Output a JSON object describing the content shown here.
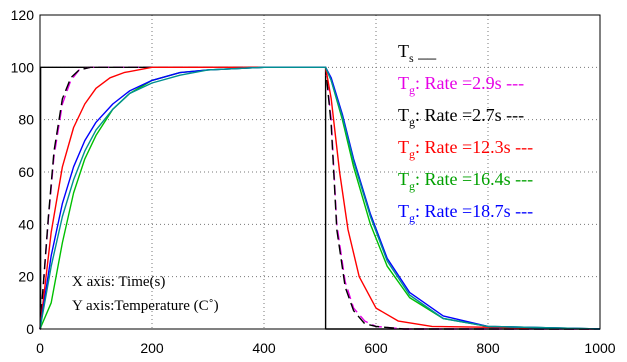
{
  "chart_data": {
    "type": "line",
    "title": "",
    "xlabel": "",
    "ylabel": "",
    "xlim": [
      0,
      1000
    ],
    "ylim": [
      0,
      120
    ],
    "xticks": [
      "0",
      "200",
      "400",
      "600",
      "800",
      "1000"
    ],
    "yticks": [
      "0",
      "20",
      "40",
      "60",
      "80",
      "100",
      "120"
    ],
    "grid": true,
    "annotations": [
      "X axis: Time(s)",
      "Y axis:Temperature (C˚)"
    ],
    "legend": {
      "placement": "top-right",
      "entries": [
        {
          "symbol": "T",
          "sub": "s",
          "text": " __",
          "color": "#000000"
        },
        {
          "symbol": "T",
          "sub": "g",
          "text": ": Rate =2.9s ---",
          "color": "#e600e6"
        },
        {
          "symbol": "T",
          "sub": "g",
          "text": ": Rate =2.7s ---",
          "color": "#000000"
        },
        {
          "symbol": "T",
          "sub": "g",
          "text": ": Rate =12.3s ---",
          "color": "#ff0000"
        },
        {
          "symbol": "T",
          "sub": "g",
          "text": ": Rate =16.4s ---",
          "color": "#00a000"
        },
        {
          "symbol": "T",
          "sub": "g",
          "text": ": Rate =18.7s ---",
          "color": "#0000ff"
        }
      ]
    },
    "series": [
      {
        "color": "#000000",
        "dash": "none",
        "x": [
          0,
          1,
          1,
          510,
          510,
          1000
        ],
        "y": [
          0,
          0,
          100,
          100,
          0,
          0
        ]
      },
      {
        "color": "#e600e6",
        "dash": "10,5",
        "x": [
          0,
          15,
          25,
          40,
          55,
          70,
          90,
          120,
          200,
          300,
          400,
          505,
          510,
          520,
          530,
          545,
          560,
          580,
          600,
          650,
          1000
        ],
        "y": [
          0,
          42,
          66,
          86,
          95,
          99,
          100,
          100,
          100,
          100,
          100,
          100,
          100,
          80,
          40,
          18,
          8,
          3,
          1,
          0,
          0
        ]
      },
      {
        "color": "#000000",
        "dash": "10,5",
        "x": [
          0,
          15,
          25,
          40,
          55,
          70,
          90,
          120,
          200,
          300,
          400,
          505,
          510,
          520,
          530,
          545,
          560,
          580,
          600,
          650,
          1000
        ],
        "y": [
          0,
          43,
          68,
          88,
          96,
          99,
          100,
          100,
          100,
          100,
          100,
          100,
          100,
          78,
          38,
          16,
          7,
          2,
          1,
          0,
          0
        ]
      },
      {
        "color": "#ff0000",
        "dash": "none",
        "x": [
          0,
          20,
          40,
          60,
          80,
          100,
          125,
          150,
          200,
          300,
          400,
          505,
          510,
          520,
          535,
          550,
          570,
          600,
          640,
          700,
          1000
        ],
        "y": [
          0,
          37,
          62,
          77,
          86,
          92,
          96,
          98,
          100,
          100,
          100,
          100,
          100,
          88,
          60,
          38,
          20,
          8,
          3,
          1,
          0
        ]
      },
      {
        "color": "#00c000",
        "dash": "none",
        "x": [
          0,
          20,
          40,
          60,
          80,
          100,
          130,
          160,
          200,
          250,
          300,
          400,
          510,
          520,
          540,
          560,
          590,
          620,
          660,
          720,
          800,
          1000
        ],
        "y": [
          0,
          10,
          33,
          52,
          65,
          74,
          84,
          90,
          95,
          98,
          99,
          100,
          100,
          95,
          80,
          62,
          40,
          24,
          12,
          4,
          1,
          0
        ]
      },
      {
        "color": "#0000ff",
        "dash": "none",
        "x": [
          0,
          20,
          40,
          60,
          80,
          100,
          130,
          160,
          200,
          250,
          300,
          400,
          510,
          520,
          540,
          560,
          590,
          620,
          660,
          720,
          800,
          1000
        ],
        "y": [
          0,
          28,
          48,
          62,
          72,
          79,
          86,
          91,
          95,
          98,
          99,
          100,
          100,
          96,
          82,
          65,
          44,
          27,
          14,
          5,
          1,
          0
        ]
      },
      {
        "color": "#009090",
        "dash": "none",
        "x": [
          0,
          20,
          40,
          60,
          80,
          100,
          130,
          160,
          200,
          250,
          300,
          400,
          510,
          520,
          540,
          560,
          590,
          620,
          660,
          720,
          800,
          1000
        ],
        "y": [
          0,
          24,
          43,
          57,
          68,
          76,
          84,
          90,
          94,
          97,
          99,
          100,
          100,
          95,
          81,
          64,
          43,
          26,
          13,
          4,
          1,
          0
        ]
      }
    ]
  }
}
